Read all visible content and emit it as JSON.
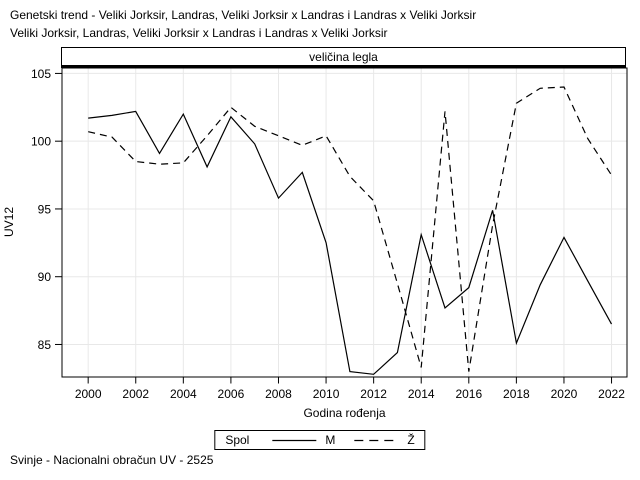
{
  "header": {
    "title_line1": "Genetski trend - Veliki Jorksir, Landras, Veliki Jorksir x Landras i Landras x Veliki Jorksir",
    "title_line2": "Veliki Jorksir, Landras, Veliki Jorksir x Landras i Landras x Veliki Jorksir"
  },
  "band": {
    "label": "veličina legla"
  },
  "legend": {
    "title": "Spol",
    "items": [
      {
        "label": "M",
        "style": "solid"
      },
      {
        "label": "Ž",
        "style": "dashed"
      }
    ]
  },
  "footer": {
    "text": "Svinje - Nacionalni obračun UV - 2525"
  },
  "chart_data": {
    "type": "line",
    "title": "veličina legla",
    "xlabel": "Godina rođenja",
    "ylabel": "UV12",
    "x": [
      2000,
      2001,
      2002,
      2003,
      2004,
      2005,
      2006,
      2007,
      2008,
      2009,
      2010,
      2011,
      2012,
      2013,
      2014,
      2015,
      2016,
      2017,
      2018,
      2019,
      2020,
      2021,
      2022
    ],
    "series": [
      {
        "name": "M",
        "style": "solid",
        "values": [
          101.7,
          101.9,
          102.2,
          99.1,
          102.0,
          98.1,
          101.8,
          99.8,
          95.8,
          97.7,
          92.5,
          83.0,
          82.8,
          84.4,
          93.1,
          87.7,
          89.2,
          94.9,
          85.1,
          89.4,
          92.9,
          89.7,
          86.5
        ]
      },
      {
        "name": "Ž",
        "style": "dashed",
        "values": [
          100.7,
          100.3,
          98.5,
          98.3,
          98.4,
          100.4,
          102.5,
          101.1,
          100.4,
          99.7,
          100.4,
          97.4,
          95.6,
          89.5,
          83.3,
          102.2,
          83.0,
          93.8,
          102.8,
          103.9,
          104.0,
          100.2,
          97.5
        ]
      }
    ],
    "xlim": [
      1998.9,
      2022.65
    ],
    "ylim": [
      82.6,
      105.4
    ],
    "x_ticks": [
      2000,
      2002,
      2004,
      2006,
      2008,
      2010,
      2012,
      2014,
      2016,
      2018,
      2020,
      2022
    ],
    "y_ticks": [
      85,
      90,
      95,
      100,
      105
    ],
    "grid": true,
    "legend_position": "bottom",
    "line_color": "#000000",
    "grid_color": "#e8e8e8"
  }
}
